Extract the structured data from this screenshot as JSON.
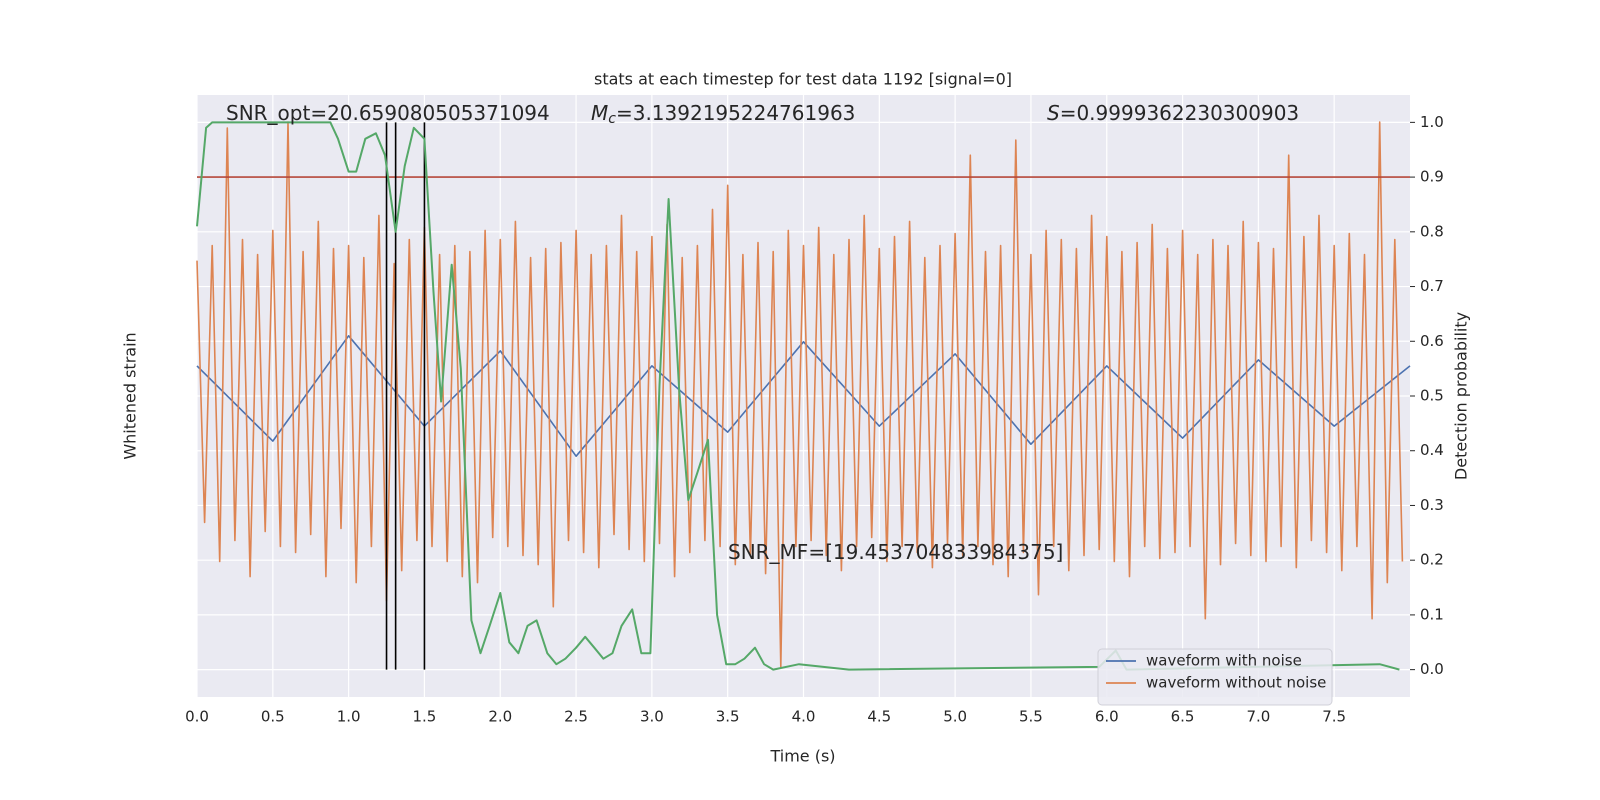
{
  "chart_data": {
    "type": "line",
    "title": "stats at each timestep for test data 1192 [signal=0]",
    "xlabel": "Time (s)",
    "ylabel": "Whitened strain",
    "y2label": "Detection probability",
    "xlim": [
      0,
      8
    ],
    "ylim": [
      -1,
      1
    ],
    "y2lim": [
      -0.05,
      1.05
    ],
    "xticks": [
      {
        "value": 0,
        "label": "0.0"
      },
      0.5,
      {
        "value": 1,
        "label": "1.0"
      },
      1.5,
      {
        "value": 2,
        "label": "2.0"
      },
      2.5,
      {
        "value": 3,
        "label": "3.0"
      },
      3.5,
      {
        "value": 4,
        "label": "4.0"
      },
      4.5,
      {
        "value": 5,
        "label": "5.0"
      },
      5.5,
      {
        "value": 6,
        "label": "6.0"
      },
      6.5,
      {
        "value": 7,
        "label": "7.0"
      },
      7.5
    ],
    "y2ticks": [
      {
        "value": 0,
        "label": "0.0"
      },
      0.1,
      0.2,
      0.3,
      0.4,
      0.5,
      0.6,
      0.7,
      0.8,
      0.9,
      {
        "value": 1,
        "label": "1.0"
      }
    ],
    "grid": true,
    "legend": "lower right",
    "x": [
      0,
      0.05,
      0.1,
      0.15,
      0.2,
      0.25,
      0.3,
      0.35,
      0.4,
      0.45,
      0.5,
      0.55,
      0.6,
      0.65,
      0.7,
      0.75,
      0.8,
      0.85,
      0.9,
      0.95,
      1,
      1.05,
      1.1,
      1.15,
      1.2,
      1.25,
      1.3,
      1.35,
      1.4,
      1.45,
      1.5,
      1.55,
      1.6,
      1.65,
      1.7,
      1.75,
      1.8,
      1.85,
      1.9,
      1.95,
      2,
      2.05,
      2.1,
      2.15,
      2.2,
      2.25,
      2.3,
      2.35,
      2.4,
      2.45,
      2.5,
      2.55,
      2.6,
      2.65,
      2.7,
      2.75,
      2.8,
      2.85,
      2.9,
      2.95,
      3,
      3.05,
      3.1,
      3.15,
      3.2,
      3.25,
      3.3,
      3.35,
      3.4,
      3.45,
      3.5,
      3.55,
      3.6,
      3.65,
      3.7,
      3.75,
      3.8,
      3.85,
      3.9,
      3.95,
      4,
      4.05,
      4.1,
      4.15,
      4.2,
      4.25,
      4.3,
      4.35,
      4.4,
      4.45,
      4.5,
      4.55,
      4.6,
      4.65,
      4.7,
      4.75,
      4.8,
      4.85,
      4.9,
      4.95,
      5,
      5.05,
      5.1,
      5.15,
      5.2,
      5.25,
      5.3,
      5.35,
      5.4,
      5.45,
      5.5,
      5.55,
      5.6,
      5.65,
      5.7,
      5.75,
      5.8,
      5.85,
      5.9,
      5.95,
      6,
      6.05,
      6.1,
      6.15,
      6.2,
      6.25,
      6.3,
      6.35,
      6.4,
      6.45,
      6.5,
      6.55,
      6.6,
      6.65,
      6.7,
      6.75,
      6.8,
      6.85,
      6.9,
      6.95,
      7,
      7.05,
      7.1,
      7.15,
      7.2,
      7.25,
      7.3,
      7.35,
      7.4,
      7.45,
      7.5,
      7.55,
      7.6,
      7.65,
      7.7,
      7.75,
      7.8,
      7.85,
      7.9,
      7.95
    ],
    "series": [
      {
        "name": "waveform with noise",
        "color": "#4c72b0",
        "x": [
          0,
          0.5,
          1,
          1.5,
          2,
          2.5,
          3,
          3.5,
          4,
          4.5,
          5,
          5.5,
          6,
          6.5,
          7,
          7.5,
          8
        ],
        "values": [
          0.1,
          -0.15,
          0.2,
          -0.1,
          0.15,
          -0.2,
          0.1,
          -0.12,
          0.18,
          -0.1,
          0.14,
          -0.16,
          0.1,
          -0.14,
          0.12,
          -0.1,
          0.1
        ]
      },
      {
        "name": "waveform without noise",
        "color": "#dd8452",
        "values": [
          0.45,
          -0.42,
          0.5,
          -0.55,
          0.89,
          -0.48,
          0.52,
          -0.6,
          0.47,
          -0.45,
          0.55,
          -0.5,
          0.91,
          -0.52,
          0.48,
          -0.46,
          0.58,
          -0.6,
          0.49,
          -0.44,
          0.5,
          -0.62,
          0.46,
          -0.5,
          0.6,
          -0.68,
          0.44,
          -0.58,
          0.52,
          -0.48,
          0.56,
          -0.5,
          0.47,
          -0.55,
          0.5,
          -0.6,
          0.48,
          -0.62,
          0.55,
          -0.47,
          0.52,
          -0.5,
          0.58,
          -0.53,
          0.46,
          -0.56,
          0.49,
          -0.7,
          0.51,
          -0.48,
          0.55,
          -0.52,
          0.47,
          -0.57,
          0.5,
          -0.46,
          0.6,
          -0.51,
          0.48,
          -0.55,
          0.53,
          -0.49,
          0.57,
          -0.6,
          0.46,
          -0.52,
          0.5,
          -0.48,
          0.62,
          -0.5,
          0.7,
          -0.56,
          0.47,
          -0.53,
          0.51,
          -0.59,
          0.48,
          -0.9,
          0.55,
          -0.5,
          0.5,
          -0.48,
          0.56,
          -0.53,
          0.47,
          -0.58,
          0.52,
          -0.5,
          0.6,
          -0.47,
          0.49,
          -0.55,
          0.53,
          -0.5,
          0.58,
          -0.52,
          0.46,
          -0.57,
          0.5,
          -0.49,
          0.54,
          -0.53,
          0.8,
          -0.5,
          0.48,
          -0.56,
          0.5,
          -0.6,
          0.85,
          -0.52,
          0.47,
          -0.66,
          0.55,
          -0.5,
          0.52,
          -0.58,
          0.49,
          -0.53,
          0.6,
          -0.51,
          0.53,
          -0.55,
          0.48,
          -0.6,
          0.51,
          -0.5,
          0.57,
          -0.54,
          0.49,
          -0.52,
          0.55,
          -0.5,
          0.47,
          -0.74,
          0.52,
          -0.56,
          0.5,
          -0.49,
          0.58,
          -0.53,
          0.51,
          -0.55,
          0.49,
          -0.5,
          0.8,
          -0.57,
          0.53,
          -0.48,
          0.6,
          -0.52,
          0.5,
          -0.58,
          0.54,
          -0.5,
          0.47,
          -0.74,
          0.91,
          -0.62,
          0.52,
          -0.55
        ]
      },
      {
        "color": "#55a868",
        "axis": "y2",
        "x": [
          0,
          0.06,
          0.1,
          0.81,
          0.88,
          0.93,
          1.0,
          1.05,
          1.11,
          1.18,
          1.24,
          1.31,
          1.37,
          1.43,
          1.5,
          1.56,
          1.61,
          1.68,
          1.74,
          1.81,
          1.87,
          1.93,
          2.0,
          2.06,
          2.12,
          2.18,
          2.24,
          2.31,
          2.37,
          2.43,
          2.5,
          2.56,
          2.62,
          2.68,
          2.74,
          2.8,
          2.87,
          2.93,
          2.99,
          3.05,
          3.11,
          3.18,
          3.24,
          3.3,
          3.37,
          3.43,
          3.49,
          3.55,
          3.61,
          3.68,
          3.74,
          3.8,
          3.97,
          4.3,
          5.95,
          6.06,
          6.13,
          7.8,
          7.93
        ],
        "values": [
          0.81,
          0.99,
          1.0,
          1.0,
          1.0,
          0.97,
          0.91,
          0.91,
          0.97,
          0.98,
          0.94,
          0.8,
          0.92,
          0.99,
          0.97,
          0.69,
          0.49,
          0.74,
          0.55,
          0.09,
          0.03,
          0.08,
          0.14,
          0.05,
          0.03,
          0.08,
          0.09,
          0.03,
          0.01,
          0.02,
          0.04,
          0.06,
          0.04,
          0.02,
          0.03,
          0.08,
          0.11,
          0.03,
          0.03,
          0.52,
          0.86,
          0.51,
          0.31,
          0.36,
          0.42,
          0.1,
          0.01,
          0.01,
          0.02,
          0.04,
          0.01,
          0.0,
          0.01,
          0.0,
          0.005,
          0.035,
          0.0,
          0.01,
          0.0
        ]
      }
    ],
    "vlines": [
      1.25,
      1.31,
      1.5
    ],
    "vline_color": "#000000",
    "hline": 0.9,
    "hline_color": "#b5473a",
    "annotations": [
      {
        "text": "SNR_opt=20.659080505371094"
      },
      {
        "symbol": "M",
        "subscript": "c",
        "text": "=3.1392195224761963"
      },
      {
        "symbol": "S",
        "text": "=0.9999362230300903"
      },
      {
        "text": "SNR_MF=[19.453704833984375]"
      }
    ]
  }
}
